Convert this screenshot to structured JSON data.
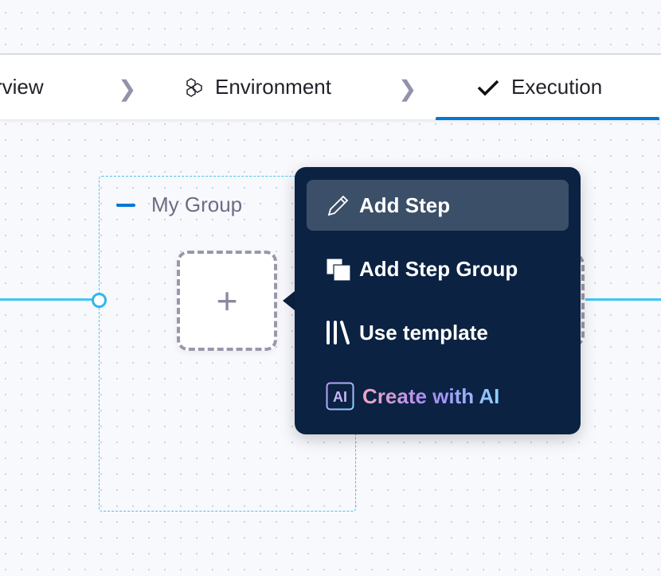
{
  "tabs": [
    {
      "label": "rview",
      "icon": "none"
    },
    {
      "label": "Environment",
      "icon": "hexagons-icon"
    },
    {
      "label": "Execution",
      "icon": "check-icon",
      "active": true
    }
  ],
  "group": {
    "title": "My Group"
  },
  "node": {
    "add_symbol": "+"
  },
  "menu": {
    "items": [
      {
        "label": "Add Step",
        "icon": "pencil-icon"
      },
      {
        "label": "Add Step Group",
        "icon": "stacked-squares-icon"
      },
      {
        "label": "Use template",
        "icon": "template-icon"
      },
      {
        "label": "Create with AI",
        "icon": "ai-icon"
      }
    ]
  },
  "colors": {
    "accent": "#0278d5",
    "menu_bg": "#0b2242",
    "connector": "#3dc7f4",
    "group_border": "#4dc3ee"
  }
}
